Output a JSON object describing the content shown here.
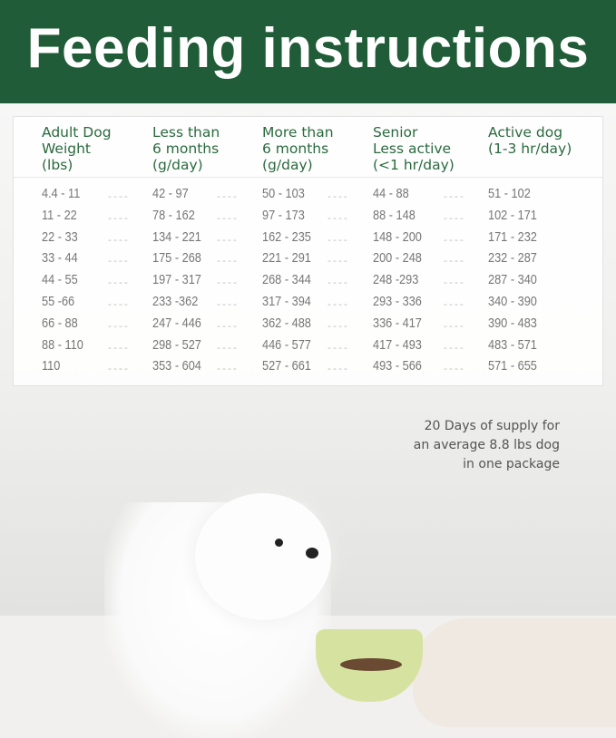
{
  "title": "Feeding instructions",
  "table": {
    "headers": [
      "Adult Dog\nWeight\n(lbs)",
      "Less than\n6 months\n(g/day)",
      "More than\n6 months\n(g/day)",
      "Senior\nLess active\n(<1 hr/day)",
      "Active dog\n(1-3 hr/day)"
    ],
    "rows": [
      [
        "4.4 - 11",
        "42 - 97",
        "50 - 103",
        "44 - 88",
        "51 - 102"
      ],
      [
        "11 - 22",
        "78 - 162",
        "97 - 173",
        "88 - 148",
        "102 - 171"
      ],
      [
        "22 - 33",
        "134 - 221",
        "162  - 235",
        "148 - 200",
        "171 - 232"
      ],
      [
        "33 - 44",
        "175 - 268",
        "221 - 291",
        "200 - 248",
        "232 - 287"
      ],
      [
        "44 - 55",
        "197 - 317",
        "268 - 344",
        "248 -293",
        "287 - 340"
      ],
      [
        "55 -66",
        "233 -362",
        "317 - 394",
        "293 - 336",
        "340 - 390"
      ],
      [
        "66 - 88",
        "247 - 446",
        "362 - 488",
        "336 - 417",
        "390 - 483"
      ],
      [
        "88 - 110",
        "298 - 527",
        "446 - 577",
        "417 - 493",
        "483 - 571"
      ],
      [
        "110",
        "353 - 604",
        "527 - 661",
        " 493 - 566",
        "571 - 655"
      ]
    ],
    "separator": "----"
  },
  "supply_note": [
    "20 Days of supply for",
    "an average 8.8 lbs dog",
    "in one package"
  ],
  "colors": {
    "brand_green": "#1f5c37",
    "header_text": "#2a6a3e"
  }
}
